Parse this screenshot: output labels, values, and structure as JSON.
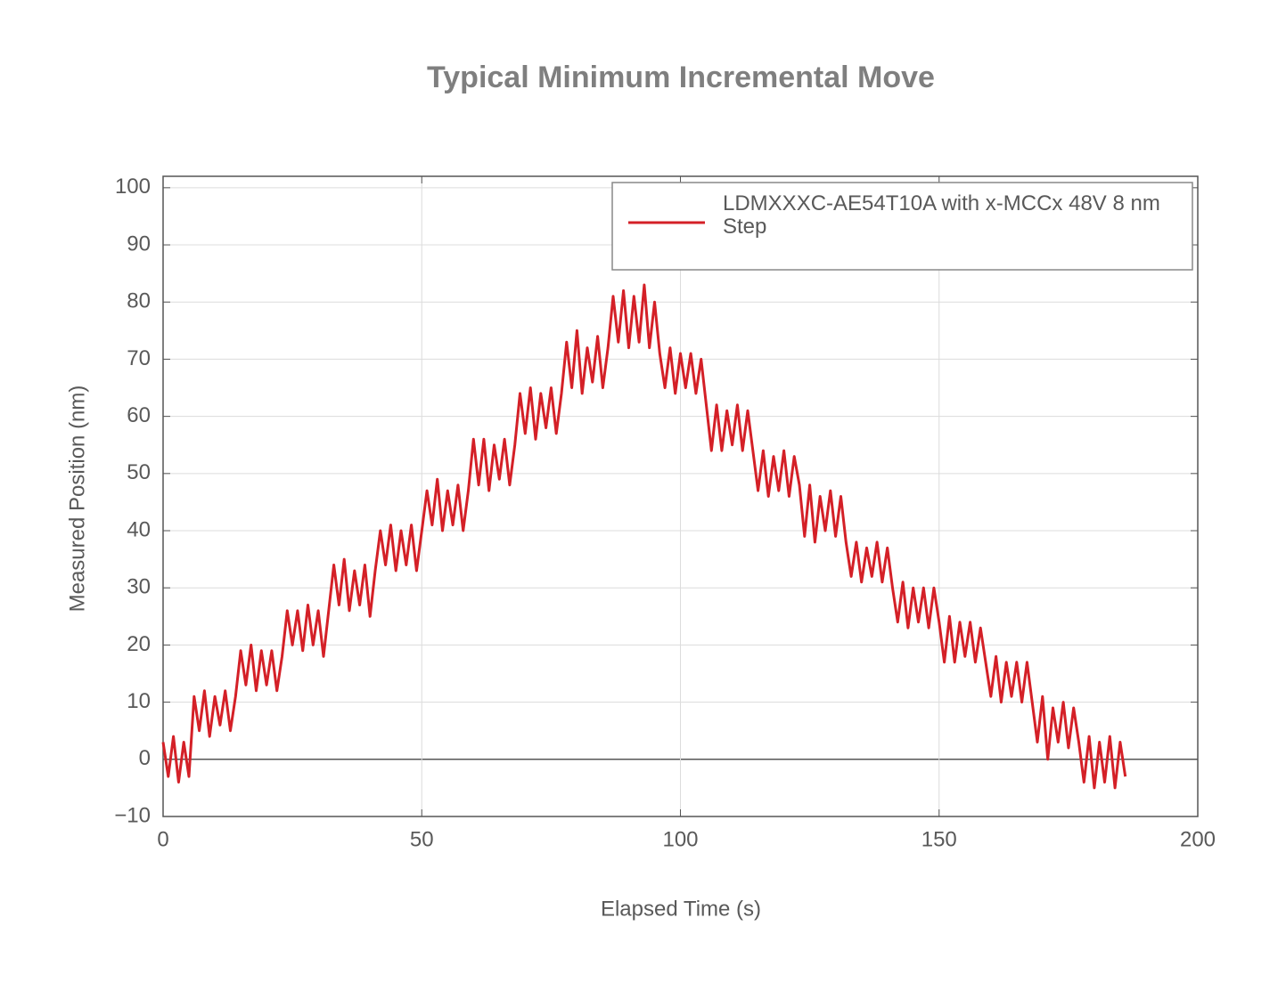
{
  "chart_data": {
    "type": "line",
    "title": "Typical Minimum Incremental Move",
    "x_label": "Elapsed Time (s)",
    "y_label": "Measured Position (nm)",
    "x": [
      0,
      1,
      2,
      3,
      4,
      5,
      6,
      7,
      8,
      9,
      10,
      11,
      12,
      13,
      14,
      15,
      16,
      17,
      18,
      19,
      20,
      21,
      22,
      23,
      24,
      25,
      26,
      27,
      28,
      29,
      30,
      31,
      32,
      33,
      34,
      35,
      36,
      37,
      38,
      39,
      40,
      41,
      42,
      43,
      44,
      45,
      46,
      47,
      48,
      49,
      50,
      51,
      52,
      53,
      54,
      55,
      56,
      57,
      58,
      59,
      60,
      61,
      62,
      63,
      64,
      65,
      66,
      67,
      68,
      69,
      70,
      71,
      72,
      73,
      74,
      75,
      76,
      77,
      78,
      79,
      80,
      81,
      82,
      83,
      84,
      85,
      86,
      87,
      88,
      89,
      90,
      91,
      92,
      93,
      94,
      95,
      96,
      97,
      98,
      99,
      100,
      101,
      102,
      103,
      104,
      105,
      106,
      107,
      108,
      109,
      110,
      111,
      112,
      113,
      114,
      115,
      116,
      117,
      118,
      119,
      120,
      121,
      122,
      123,
      124,
      125,
      126,
      127,
      128,
      129,
      130,
      131,
      132,
      133,
      134,
      135,
      136,
      137,
      138,
      139,
      140,
      141,
      142,
      143,
      144,
      145,
      146,
      147,
      148,
      149,
      150,
      151,
      152,
      153,
      154,
      155,
      156,
      157,
      158,
      159,
      160,
      161,
      162,
      163,
      164,
      165,
      166,
      167,
      168,
      169,
      170,
      171,
      172,
      173,
      174,
      175,
      176,
      177,
      178,
      179,
      180,
      181,
      182,
      183,
      184,
      185,
      186
    ],
    "series": [
      {
        "name": "LDMXXXC-AE54T10A with x-MCCx 48V 8 nm Step",
        "color": "#d42027",
        "values": [
          3,
          -3,
          4,
          -4,
          3,
          -3,
          11,
          5,
          12,
          4,
          11,
          6,
          12,
          5,
          11,
          19,
          13,
          20,
          12,
          19,
          13,
          19,
          12,
          18,
          26,
          20,
          26,
          19,
          27,
          20,
          26,
          18,
          26,
          34,
          27,
          35,
          26,
          33,
          27,
          34,
          25,
          33,
          40,
          34,
          41,
          33,
          40,
          34,
          41,
          33,
          40,
          47,
          41,
          49,
          40,
          47,
          41,
          48,
          40,
          47,
          56,
          48,
          56,
          47,
          55,
          49,
          56,
          48,
          55,
          64,
          57,
          65,
          56,
          64,
          58,
          65,
          57,
          64,
          73,
          65,
          75,
          64,
          72,
          66,
          74,
          65,
          72,
          81,
          73,
          82,
          72,
          81,
          73,
          83,
          72,
          80,
          71,
          65,
          72,
          64,
          71,
          65,
          71,
          64,
          70,
          62,
          54,
          62,
          54,
          61,
          55,
          62,
          54,
          61,
          54,
          47,
          54,
          46,
          53,
          47,
          54,
          46,
          53,
          48,
          39,
          48,
          38,
          46,
          40,
          47,
          39,
          46,
          38,
          32,
          38,
          31,
          37,
          32,
          38,
          31,
          37,
          30,
          24,
          31,
          23,
          30,
          24,
          30,
          23,
          30,
          24,
          17,
          25,
          17,
          24,
          18,
          24,
          17,
          23,
          17,
          11,
          18,
          10,
          17,
          11,
          17,
          10,
          17,
          10,
          3,
          11,
          0,
          9,
          3,
          10,
          2,
          9,
          3,
          -4,
          4,
          -5,
          3,
          -4,
          4,
          -5,
          3,
          -3
        ]
      }
    ],
    "xlim": [
      0,
      200
    ],
    "xticks": [
      0,
      50,
      100,
      150,
      200
    ],
    "ylim": [
      -10,
      102
    ],
    "yticks": [
      {
        "value": -10,
        "label": "−10"
      },
      0,
      10,
      20,
      30,
      40,
      50,
      60,
      70,
      80,
      90,
      100
    ],
    "grid": true,
    "legend": "upper right"
  }
}
